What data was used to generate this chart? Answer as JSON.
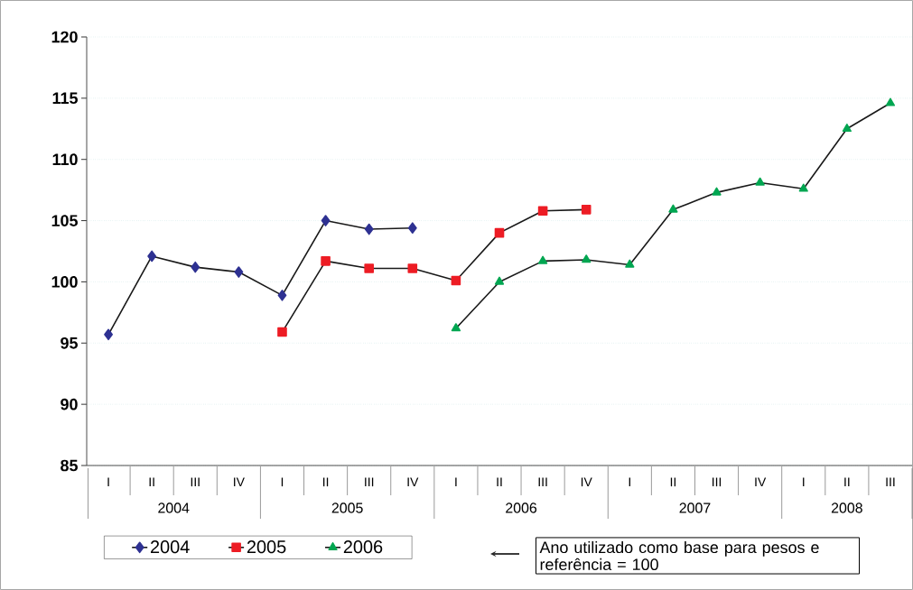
{
  "chart_data": {
    "type": "line",
    "categories": [
      "I",
      "II",
      "III",
      "IV",
      "I",
      "II",
      "III",
      "IV",
      "I",
      "II",
      "III",
      "IV",
      "I",
      "II",
      "III",
      "IV",
      "I",
      "II",
      "III"
    ],
    "series": [
      {
        "name": "2004",
        "color": "#2e3192",
        "marker": "diamond",
        "values": [
          95.7,
          102.1,
          101.2,
          100.8,
          98.9,
          105.0,
          104.3,
          104.4,
          null,
          null,
          null,
          null,
          null,
          null,
          null,
          null,
          null,
          null,
          null
        ]
      },
      {
        "name": "2005",
        "color": "#ed1c24",
        "marker": "square",
        "values": [
          null,
          null,
          null,
          null,
          95.9,
          101.7,
          101.1,
          101.1,
          100.1,
          104.0,
          105.8,
          105.9,
          null,
          null,
          null,
          null,
          null,
          null,
          null
        ]
      },
      {
        "name": "2006",
        "color": "#00a651",
        "marker": "triangle",
        "values": [
          null,
          null,
          null,
          null,
          null,
          null,
          null,
          null,
          96.2,
          100.0,
          101.7,
          101.8,
          101.4,
          105.9,
          107.3,
          108.1,
          107.6,
          112.5,
          114.6
        ]
      }
    ],
    "ylim": [
      85,
      120
    ],
    "yticks": [
      85,
      90,
      95,
      100,
      105,
      110,
      115,
      120
    ],
    "grid": "y",
    "legend": "bottom",
    "line_style": "solid",
    "annotations": [
      "2004",
      "2005",
      "2006",
      "2007",
      "2008",
      "Ano utilizado como base para pesos e referência = 100"
    ]
  }
}
